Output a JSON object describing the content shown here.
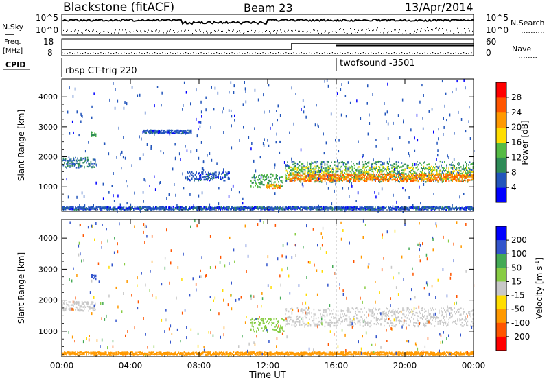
{
  "header": {
    "station": "Blackstone (fitACF)",
    "beam": "Beam 23",
    "date": "13/Apr/2014"
  },
  "summary_panels": {
    "nsky_label": "N.Sky",
    "nsearch_label": "N.Search",
    "freq_label_line1": "Freq.",
    "freq_label_line2": "[MHz]",
    "nave_label": "Nave",
    "cpid_label": "CPID",
    "noise_ticks_left": [
      "10^5",
      "10^0"
    ],
    "noise_ticks_right": [
      "10^5",
      "10^0"
    ],
    "freq_ticks": [
      "18",
      "8"
    ],
    "nave_ticks": [
      "60",
      "0"
    ],
    "cpid_segments": [
      {
        "name": "rbsp CT-trig 220",
        "start_hour": 0,
        "end_hour": 16
      },
      {
        "name": "twofsound -3501",
        "start_hour": 16,
        "end_hour": 24
      }
    ]
  },
  "axes": {
    "ylabel": "Slant Range [km]",
    "xlabel": "Time UT",
    "yticks": [
      "1000",
      "2000",
      "3000",
      "4000"
    ],
    "xticks": [
      "00:00",
      "04:00",
      "08:00",
      "12:00",
      "16:00",
      "20:00",
      "00:00"
    ]
  },
  "power_colorbar": {
    "label": "Power [dB]",
    "ticks": [
      "4",
      "8",
      "12",
      "16",
      "20",
      "24",
      "28"
    ],
    "colors": [
      "#0000ff",
      "#2255bb",
      "#2e8b57",
      "#55bb44",
      "#ffdd00",
      "#ff9900",
      "#ff5500",
      "#ff0000"
    ]
  },
  "velocity_colorbar": {
    "label_main": "Velocity [m s",
    "label_exp": "-1",
    "label_end": "]",
    "ticks": [
      "200",
      "100",
      "50",
      "15",
      "-15",
      "-50",
      "-100",
      "-200"
    ],
    "colors": [
      "#0000ff",
      "#3355cc",
      "#44aa55",
      "#88cc44",
      "#c8c8c8",
      "#ffdd00",
      "#ff9900",
      "#ff5500",
      "#ff0000"
    ]
  },
  "chart_data": [
    {
      "type": "heatmap",
      "title": "Power",
      "x_range_hours": [
        0,
        24
      ],
      "ylim": [
        180,
        4600
      ],
      "range_bands": [
        {
          "start_hour": 0.0,
          "end_hour": 2.0,
          "range_center_km": 1800,
          "range_width_km": 350,
          "value_db": 8
        },
        {
          "start_hour": 1.7,
          "end_hour": 2.0,
          "range_center_km": 2750,
          "range_width_km": 150,
          "value_db": 12
        },
        {
          "start_hour": 4.7,
          "end_hour": 7.6,
          "range_center_km": 2830,
          "range_width_km": 120,
          "value_db": 6
        },
        {
          "start_hour": 7.3,
          "end_hour": 9.8,
          "range_center_km": 1350,
          "range_width_km": 300,
          "value_db": 6
        },
        {
          "start_hour": 11.0,
          "end_hour": 12.9,
          "range_center_km": 1200,
          "range_width_km": 450,
          "value_db": 12
        },
        {
          "start_hour": 11.9,
          "end_hour": 12.8,
          "range_center_km": 1000,
          "range_width_km": 150,
          "value_db": 22
        },
        {
          "start_hour": 13.0,
          "end_hour": 24.0,
          "range_center_km": 1500,
          "range_width_km": 700,
          "value_db": 10
        },
        {
          "start_hour": 13.0,
          "end_hour": 24.0,
          "range_center_km": 1450,
          "range_width_km": 450,
          "value_db": 16
        },
        {
          "start_hour": 13.2,
          "end_hour": 24.0,
          "range_center_km": 1300,
          "range_width_km": 250,
          "value_db": 24
        },
        {
          "start_hour": 0.0,
          "end_hour": 24.0,
          "range_center_km": 280,
          "range_width_km": 100,
          "value_db": 6
        }
      ]
    },
    {
      "type": "heatmap",
      "title": "Velocity",
      "x_range_hours": [
        0,
        24
      ],
      "ylim": [
        180,
        4600
      ],
      "range_bands": [
        {
          "start_hour": 0.0,
          "end_hour": 2.0,
          "range_center_km": 1800,
          "range_width_km": 300,
          "value_ms": 0
        },
        {
          "start_hour": 1.7,
          "end_hour": 2.0,
          "range_center_km": 2750,
          "range_width_km": 150,
          "value_ms": 150
        },
        {
          "start_hour": 11.0,
          "end_hour": 13.0,
          "range_center_km": 1200,
          "range_width_km": 450,
          "value_ms": 30
        },
        {
          "start_hour": 13.0,
          "end_hour": 24.0,
          "range_center_km": 1450,
          "range_width_km": 600,
          "value_ms": 0
        },
        {
          "start_hour": 0.0,
          "end_hour": 24.0,
          "range_center_km": 280,
          "range_width_km": 100,
          "value_ms": -60
        }
      ]
    }
  ]
}
